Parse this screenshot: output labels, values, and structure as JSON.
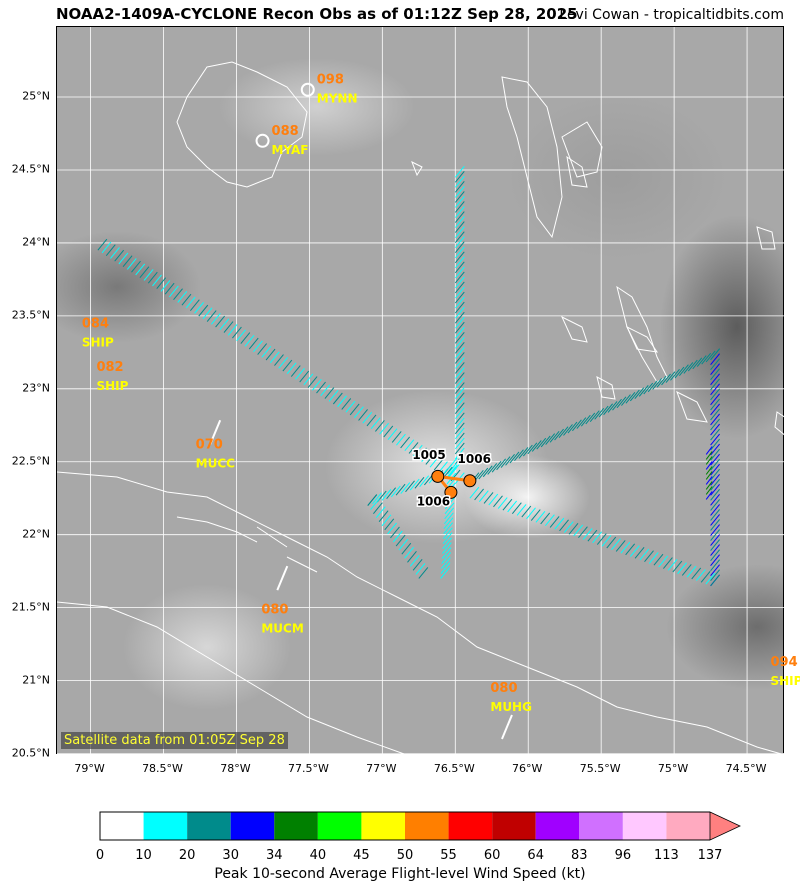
{
  "title": "NOAA2-1409A-CYCLONE Recon Obs as of 01:12Z Sep 28, 2025",
  "credit": "Levi Cowan - tropicaltidbits.com",
  "satellite_label": "Satellite data from 01:05Z Sep 28",
  "colors": {
    "coast": "#ffffff",
    "grid": "#ffffff",
    "ob_value": "#ff7f0e",
    "station_id": "#ffff00",
    "track": "#ff7f0e"
  },
  "axes": {
    "x_ticks": [
      "79°W",
      "78.5°W",
      "78°W",
      "77.5°W",
      "77°W",
      "76.5°W",
      "76°W",
      "75.5°W",
      "75°W",
      "74.5°W"
    ],
    "x_values": [
      -79,
      -78.5,
      -78,
      -77.5,
      -77,
      -76.5,
      -76,
      -75.5,
      -75,
      -74.5
    ],
    "y_ticks": [
      "25°N",
      "24.5°N",
      "24°N",
      "23.5°N",
      "23°N",
      "22.5°N",
      "22°N",
      "21.5°N",
      "21°N",
      "20.5°N"
    ],
    "y_values": [
      25,
      24.5,
      24,
      23.5,
      23,
      22.5,
      22,
      21.5,
      21,
      20.5
    ],
    "lon_range": [
      -79.23,
      -74.24
    ],
    "lat_range": [
      20.49,
      25.48
    ]
  },
  "stations": [
    {
      "value": "098",
      "id": "MYNN",
      "lon": -77.47,
      "lat": 25.05,
      "marker": true
    },
    {
      "value": "088",
      "id": "MYAF",
      "lon": -77.78,
      "lat": 24.7,
      "marker": true
    },
    {
      "value": "084",
      "id": "SHIP",
      "lon": -79.08,
      "lat": 23.38,
      "marker": false
    },
    {
      "value": "082",
      "id": "SHIP",
      "lon": -78.98,
      "lat": 23.08,
      "marker": false
    },
    {
      "value": "070",
      "id": "MUCC",
      "lon": -78.3,
      "lat": 22.55,
      "marker": false
    },
    {
      "value": "080",
      "id": "MUCM",
      "lon": -77.85,
      "lat": 21.42,
      "marker": false
    },
    {
      "value": "080",
      "id": "MUHG",
      "lon": -76.28,
      "lat": 20.88,
      "marker": false
    },
    {
      "value": "094",
      "id": "SHIP",
      "lon": -74.36,
      "lat": 21.06,
      "marker": false
    }
  ],
  "pressure_obs": [
    {
      "value": "1005",
      "lon": -76.68,
      "lat": 22.52
    },
    {
      "value": "1006",
      "lon": -76.37,
      "lat": 22.49
    },
    {
      "value": "1006",
      "lon": -76.65,
      "lat": 22.2
    }
  ],
  "colorbar": {
    "ticks": [
      "0",
      "10",
      "20",
      "30",
      "34",
      "40",
      "45",
      "50",
      "55",
      "60",
      "64",
      "83",
      "96",
      "113",
      "137"
    ],
    "colors": [
      "#ffffff",
      "#00ffff",
      "#008b8b",
      "#0000ff",
      "#008000",
      "#00ff00",
      "#ffff00",
      "#ff7f00",
      "#ff0000",
      "#c00000",
      "#a000ff",
      "#d070ff",
      "#ffc8ff",
      "#ffaac0"
    ],
    "extend_color": "#ff8080",
    "label": "Peak 10-second Average Flight-level Wind Speed (kt)"
  }
}
